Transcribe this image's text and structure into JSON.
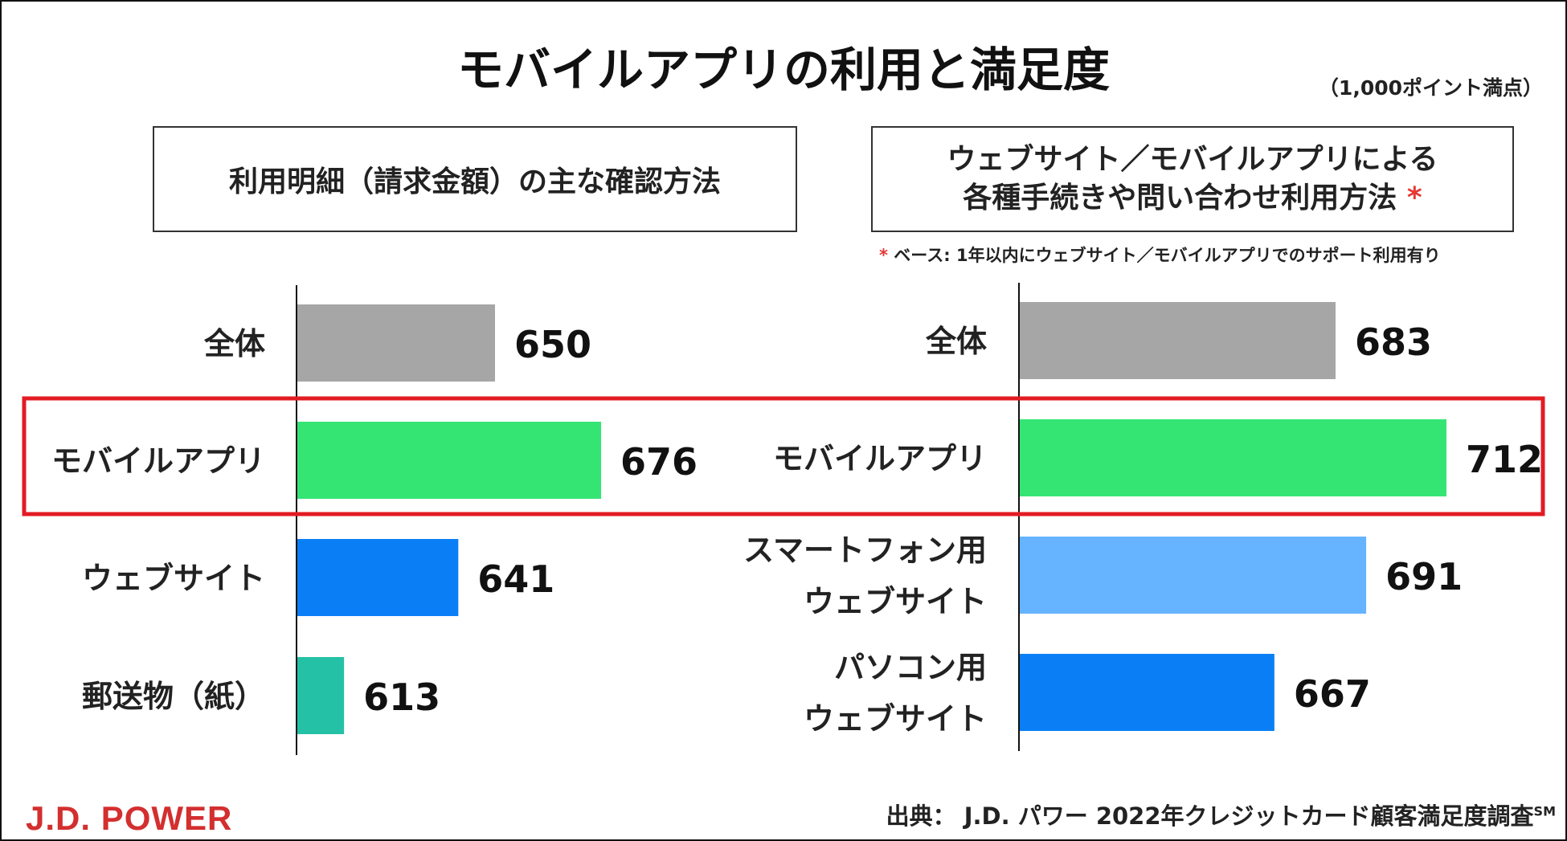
{
  "title": "モバイルアプリの利用と満足度",
  "unit_note": "（1,000ポイント満点）",
  "left_panel": {
    "header": "利用明細（請求金額）の主な確認方法"
  },
  "right_panel": {
    "header_line1": "ウェブサイト／モバイルアプリによる",
    "header_line2": "各種手続きや問い合わせ利用方法",
    "asterisk": "*",
    "base_note_asterisk": "*",
    "base_note": "ベース: 1年以内にウェブサイト／モバイルアプリでのサポート利用有り"
  },
  "logo": "J.D. POWER",
  "source": {
    "text": "出典：  J.D. パワー 2022年クレジットカード顧客満足度調査",
    "sup": "SM"
  },
  "colors": {
    "gray": "#a6a6a6",
    "green": "#35e574",
    "blue": "#0a7ff5",
    "light_blue": "#66b3ff",
    "teal": "#25c1a6",
    "highlight": "#e31b23"
  },
  "chart_data": [
    {
      "type": "bar",
      "orientation": "horizontal",
      "title": "利用明細（請求金額）の主な確認方法",
      "categories": [
        [
          "全体"
        ],
        [
          "モバイルアプリ"
        ],
        [
          "ウェブサイト"
        ],
        [
          "郵送物（紙）"
        ]
      ],
      "values": [
        650,
        676,
        641,
        613
      ],
      "colors": [
        "#a6a6a6",
        "#35e574",
        "#0a7ff5",
        "#25c1a6"
      ],
      "highlighted_category": "モバイルアプリ"
    },
    {
      "type": "bar",
      "orientation": "horizontal",
      "title": "ウェブサイト／モバイルアプリによる各種手続きや問い合わせ利用方法",
      "categories": [
        [
          "全体"
        ],
        [
          "モバイルアプリ"
        ],
        [
          "スマートフォン用",
          "ウェブサイト"
        ],
        [
          "パソコン用",
          "ウェブサイト"
        ]
      ],
      "values": [
        683,
        712,
        691,
        667
      ],
      "colors": [
        "#a6a6a6",
        "#35e574",
        "#66b3ff",
        "#0a7ff5"
      ],
      "highlighted_category": "モバイルアプリ"
    }
  ]
}
